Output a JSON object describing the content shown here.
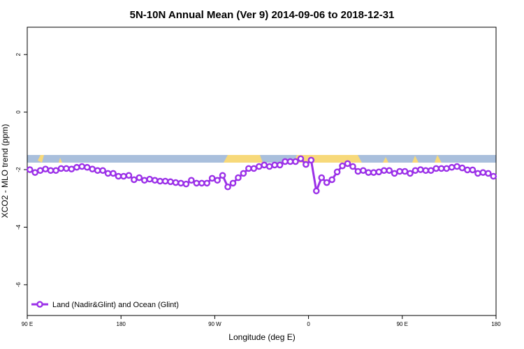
{
  "chart_data": {
    "type": "line",
    "title": "5N-10N Annual Mean (Ver 9)   2014-09-06 to 2018-12-31",
    "x_label": "Longitude (deg E)",
    "y_label": "XCO2 - MLO trend (ppm)",
    "xlim": [
      90,
      540
    ],
    "ylim": [
      -7.07,
      2.95
    ],
    "xticks": [
      {
        "value": 90,
        "label": "90 E"
      },
      180,
      {
        "value": 270,
        "label": "90 W"
      },
      {
        "value": 360,
        "label": "0"
      },
      {
        "value": 450,
        "label": "90 E"
      },
      {
        "value": 540,
        "label": "180"
      }
    ],
    "yticks": [
      2,
      0,
      -2,
      -4,
      -6
    ],
    "legend": "lower left",
    "x": [
      92.5,
      97.5,
      102.5,
      107.5,
      112.5,
      117.5,
      122.5,
      127.5,
      132.5,
      137.5,
      142.5,
      147.5,
      152.5,
      157.5,
      162.5,
      167.5,
      172.5,
      177.5,
      182.5,
      187.5,
      192.5,
      197.5,
      202.5,
      207.5,
      212.5,
      217.5,
      222.5,
      227.5,
      232.5,
      237.5,
      242.5,
      247.5,
      252.5,
      257.5,
      262.5,
      267.5,
      272.5,
      277.5,
      282.5,
      287.5,
      292.5,
      297.5,
      302.5,
      307.5,
      312.5,
      317.5,
      322.5,
      327.5,
      332.5,
      337.5,
      342.5,
      347.5,
      352.5,
      357.5,
      362.5,
      367.5,
      372.5,
      377.5,
      382.5,
      387.5,
      392.5,
      397.5,
      402.5,
      407.5,
      412.5,
      417.5,
      422.5,
      427.5,
      432.5,
      437.5,
      442.5,
      447.5,
      452.5,
      457.5,
      462.5,
      467.5,
      472.5,
      477.5,
      482.5,
      487.5,
      492.5,
      497.5,
      502.5,
      507.5,
      512.5,
      517.5,
      522.5,
      527.5,
      532.5,
      537.5
    ],
    "series": [
      {
        "name": "Land (Nadir&Glint) and Ocean (Glint)",
        "color": "#9b30e8",
        "values": [
          -2.0,
          -2.1,
          -2.03,
          -1.98,
          -2.03,
          -2.03,
          -1.96,
          -1.96,
          -1.98,
          -1.92,
          -1.89,
          -1.92,
          -1.98,
          -2.03,
          -2.03,
          -2.13,
          -2.13,
          -2.23,
          -2.23,
          -2.2,
          -2.35,
          -2.28,
          -2.37,
          -2.33,
          -2.37,
          -2.4,
          -2.4,
          -2.42,
          -2.45,
          -2.47,
          -2.5,
          -2.37,
          -2.47,
          -2.47,
          -2.47,
          -2.3,
          -2.37,
          -2.2,
          -2.6,
          -2.47,
          -2.28,
          -2.13,
          -1.96,
          -1.96,
          -1.89,
          -1.84,
          -1.89,
          -1.84,
          -1.84,
          -1.72,
          -1.72,
          -1.72,
          -1.62,
          -1.82,
          -1.67,
          -2.74,
          -2.28,
          -2.45,
          -2.35,
          -2.08,
          -1.87,
          -1.79,
          -1.89,
          -2.06,
          -2.03,
          -2.1,
          -2.1,
          -2.08,
          -2.03,
          -2.03,
          -2.13,
          -2.06,
          -2.06,
          -2.13,
          -2.03,
          -2.0,
          -2.03,
          -2.03,
          -1.96,
          -1.96,
          -1.96,
          -1.92,
          -1.89,
          -1.94,
          -2.01,
          -2.01,
          -2.13,
          -2.1,
          -2.13,
          -2.23
        ]
      }
    ]
  }
}
